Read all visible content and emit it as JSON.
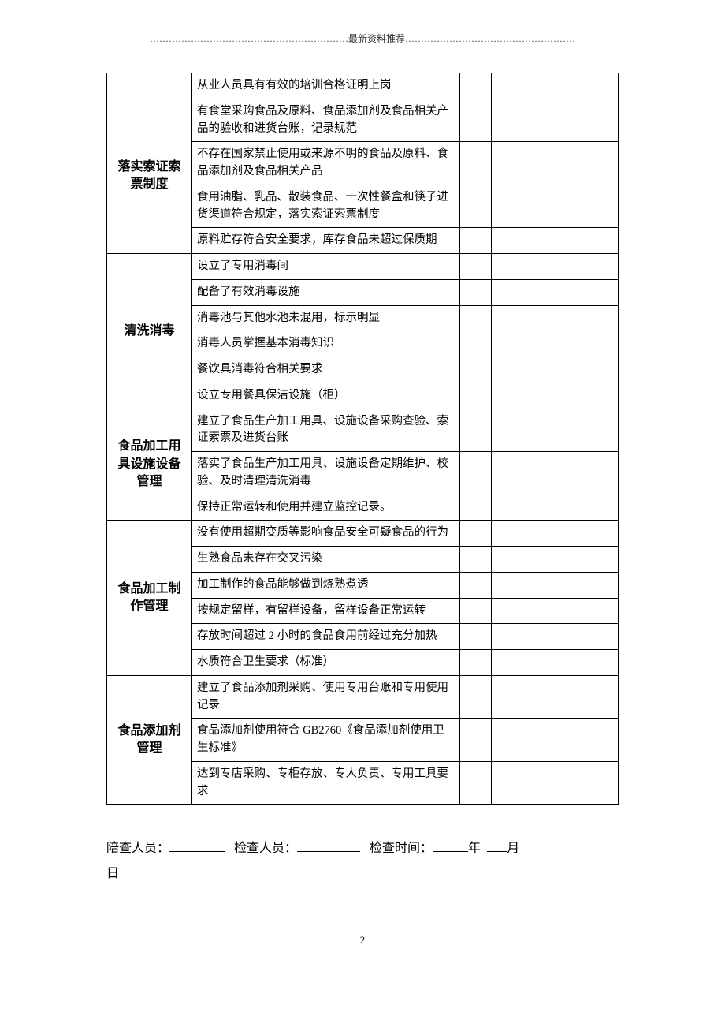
{
  "header": "………………………………………………………最新资料推荐………………………………………………",
  "top_row_item": "从业人员具有有效的培训合格证明上岗",
  "sections": [
    {
      "category": "落实索证索票制度",
      "items": [
        "有食堂采购食品及原料、食品添加剂及食品相关产品的验收和进货台账，记录规范",
        "不存在国家禁止使用或来源不明的食品及原料、食品添加剂及食品相关产品",
        "食用油脂、乳品、散装食品、一次性餐盒和筷子进货渠道符合规定，落实索证索票制度",
        "原料贮存符合安全要求，库存食品未超过保质期"
      ]
    },
    {
      "category": "清洗消毒",
      "items": [
        "设立了专用消毒间",
        "配备了有效消毒设施",
        "消毒池与其他水池未混用，标示明显",
        "消毒人员掌握基本消毒知识",
        "餐饮具消毒符合相关要求",
        "设立专用餐具保洁设施（柜）"
      ]
    },
    {
      "category": "食品加工用具设施设备管理",
      "items": [
        "建立了食品生产加工用具、设施设备采购查验、索证索票及进货台账",
        "落实了食品生产加工用具、设施设备定期维护、校验、及时清理清洗消毒",
        "保持正常运转和使用并建立监控记录。"
      ]
    },
    {
      "category": "食品加工制作管理",
      "items": [
        "没有使用超期变质等影响食品安全可疑食品的行为",
        "生熟食品未存在交叉污染",
        "加工制作的食品能够做到烧熟煮透",
        "按规定留样，有留样设备，留样设备正常运转",
        "存放时间超过 2 小时的食品食用前经过充分加热",
        "水质符合卫生要求（标准）"
      ]
    },
    {
      "category": "食品添加剂管理",
      "items": [
        "建立了食品添加剂采购、使用专用台账和专用使用记录",
        "食品添加剂使用符合 GB2760《食品添加剂使用卫生标准》",
        "达到专店采购、专柜存放、专人负责、专用工具要求"
      ]
    }
  ],
  "footer": {
    "escort_label": "陪查人员：",
    "inspector_label": "检查人员：",
    "time_label": "检查时间：",
    "year": "年",
    "month": "月",
    "day": "日"
  },
  "page_number": "2"
}
